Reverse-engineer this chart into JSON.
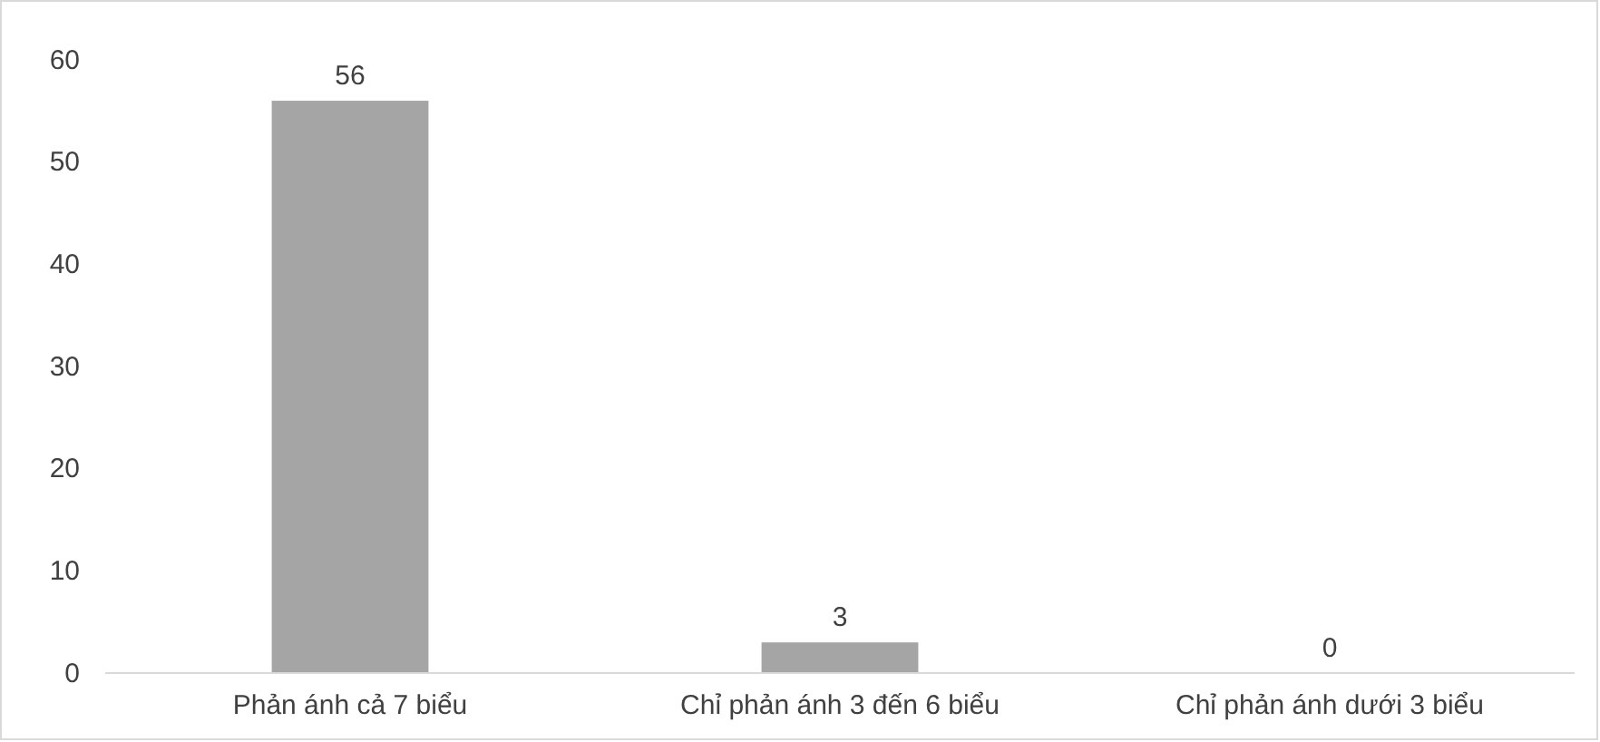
{
  "chart_data": {
    "type": "bar",
    "categories": [
      "Phản ánh cả 7 biểu",
      "Chỉ phản ánh 3 đến 6 biểu",
      "Chỉ phản ánh dưới 3 biểu"
    ],
    "values": [
      56,
      3,
      0
    ],
    "color": "#a5a5a5",
    "ylim": [
      0,
      60
    ],
    "yticks": [
      0,
      10,
      20,
      30,
      40,
      50,
      60
    ],
    "grid": false,
    "data_labels": true
  }
}
